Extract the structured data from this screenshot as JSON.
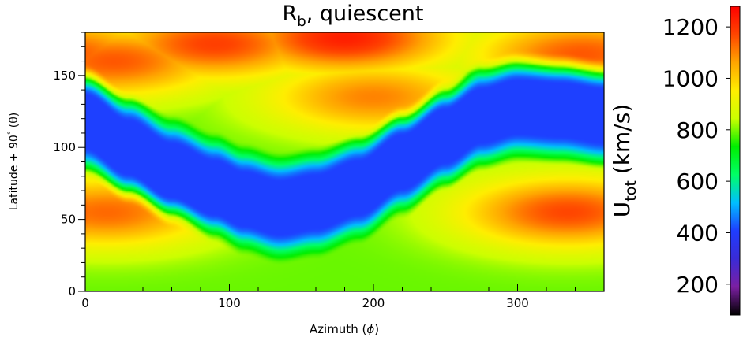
{
  "chart_data": {
    "type": "heatmap",
    "title_main": "R",
    "title_sub": "b",
    "title_rest": ", quiescent",
    "xlabel_text": "Azimuth (",
    "xlabel_symbol": "ϕ",
    "xlabel_close": ")",
    "ylabel_text": "Latitude + 90",
    "ylabel_degree": "°",
    "ylabel_symbol": "(θ)",
    "xlim": [
      0,
      360
    ],
    "ylim": [
      0,
      180
    ],
    "xticks": [
      0,
      100,
      200,
      300
    ],
    "yticks": [
      0,
      50,
      100,
      150
    ],
    "colorbar": {
      "label_main": "U",
      "label_sub": "tot",
      "label_unit": "(km/s)",
      "range": [
        80,
        1280
      ],
      "ticks": [
        200,
        400,
        600,
        800,
        1000,
        1200
      ],
      "colors": [
        "#000000",
        "#7b1fa2",
        "#3a2bd6",
        "#1f3dff",
        "#00bfff",
        "#00ff66",
        "#00ee00",
        "#ccff00",
        "#ffee00",
        "#ffa500",
        "#ff4500",
        "#ff0000"
      ]
    },
    "field": {
      "description_units": "km/s",
      "band_center_lat_at_azimuth": [
        [
          0,
          118
        ],
        [
          30,
          100
        ],
        [
          60,
          84
        ],
        [
          90,
          72
        ],
        [
          110,
          64
        ],
        [
          135,
          58
        ],
        [
          160,
          62
        ],
        [
          190,
          72
        ],
        [
          220,
          90
        ],
        [
          250,
          108
        ],
        [
          275,
          122
        ],
        [
          300,
          128
        ],
        [
          330,
          126
        ],
        [
          360,
          122
        ]
      ],
      "band_speed": 410,
      "ambient_speed": 790,
      "fast_regions": [
        {
          "azimuth": 90,
          "latitude": 172,
          "peak": 1180
        },
        {
          "azimuth": 180,
          "latitude": 176,
          "peak": 1230
        },
        {
          "azimuth": 20,
          "latitude": 160,
          "peak": 1150
        },
        {
          "azimuth": 345,
          "latitude": 165,
          "peak": 1150
        },
        {
          "azimuth": 200,
          "latitude": 135,
          "peak": 1100
        },
        {
          "azimuth": 15,
          "latitude": 55,
          "peak": 1130
        },
        {
          "azimuth": 335,
          "latitude": 55,
          "peak": 1170
        }
      ]
    }
  }
}
